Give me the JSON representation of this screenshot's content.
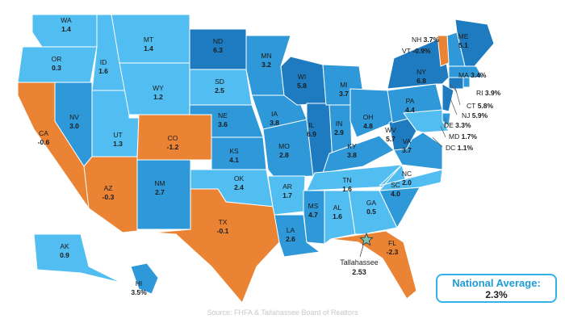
{
  "colors": {
    "dark": "#1e7bbf",
    "medium": "#2e98d8",
    "light": "#52bdf0",
    "negative": "#ea8434",
    "border": "#ffffff",
    "accent_text": "#1f9bd6"
  },
  "states": [
    {
      "abbr": "WA",
      "value": "1.4",
      "tone": "light"
    },
    {
      "abbr": "OR",
      "value": "0.3",
      "tone": "light"
    },
    {
      "abbr": "CA",
      "value": "-0.6",
      "tone": "negative"
    },
    {
      "abbr": "ID",
      "value": "1.6",
      "tone": "light"
    },
    {
      "abbr": "NV",
      "value": "3.0",
      "tone": "medium"
    },
    {
      "abbr": "AZ",
      "value": "-0.3",
      "tone": "negative"
    },
    {
      "abbr": "UT",
      "value": "1.3",
      "tone": "light"
    },
    {
      "abbr": "MT",
      "value": "1.4",
      "tone": "light"
    },
    {
      "abbr": "WY",
      "value": "1.2",
      "tone": "light"
    },
    {
      "abbr": "CO",
      "value": "-1.2",
      "tone": "negative"
    },
    {
      "abbr": "NM",
      "value": "2.7",
      "tone": "medium"
    },
    {
      "abbr": "ND",
      "value": "6.3",
      "tone": "dark"
    },
    {
      "abbr": "SD",
      "value": "2.5",
      "tone": "light"
    },
    {
      "abbr": "NE",
      "value": "3.6",
      "tone": "medium"
    },
    {
      "abbr": "KS",
      "value": "4.1",
      "tone": "medium"
    },
    {
      "abbr": "OK",
      "value": "2.4",
      "tone": "light"
    },
    {
      "abbr": "TX",
      "value": "-0.1",
      "tone": "negative"
    },
    {
      "abbr": "MN",
      "value": "3.2",
      "tone": "medium"
    },
    {
      "abbr": "IA",
      "value": "3.8",
      "tone": "medium"
    },
    {
      "abbr": "MO",
      "value": "2.8",
      "tone": "medium"
    },
    {
      "abbr": "AR",
      "value": "1.7",
      "tone": "light"
    },
    {
      "abbr": "LA",
      "value": "2.6",
      "tone": "medium"
    },
    {
      "abbr": "WI",
      "value": "5.8",
      "tone": "dark"
    },
    {
      "abbr": "IL",
      "value": "6.9",
      "tone": "dark"
    },
    {
      "abbr": "MI",
      "value": "3.7",
      "tone": "medium"
    },
    {
      "abbr": "IN",
      "value": "2.9",
      "tone": "medium"
    },
    {
      "abbr": "OH",
      "value": "4.8",
      "tone": "medium"
    },
    {
      "abbr": "KY",
      "value": "3.8",
      "tone": "medium"
    },
    {
      "abbr": "TN",
      "value": "1.6",
      "tone": "light"
    },
    {
      "abbr": "MS",
      "value": "4.7",
      "tone": "medium"
    },
    {
      "abbr": "AL",
      "value": "1.6",
      "tone": "light"
    },
    {
      "abbr": "GA",
      "value": "0.5",
      "tone": "light"
    },
    {
      "abbr": "FL",
      "value": "-2.3",
      "tone": "negative"
    },
    {
      "abbr": "SC",
      "value": "4.0",
      "tone": "medium"
    },
    {
      "abbr": "NC",
      "value": "2.0",
      "tone": "light"
    },
    {
      "abbr": "VA",
      "value": "3.7",
      "tone": "medium"
    },
    {
      "abbr": "WV",
      "value": "5.7",
      "tone": "dark"
    },
    {
      "abbr": "PA",
      "value": "4.4",
      "tone": "medium"
    },
    {
      "abbr": "NY",
      "value": "6.8",
      "tone": "dark"
    },
    {
      "abbr": "ME",
      "value": "5.1",
      "tone": "dark"
    },
    {
      "abbr": "NH",
      "value": "3.7%",
      "tone": "medium"
    },
    {
      "abbr": "VT",
      "value": "-0.9%",
      "tone": "negative"
    },
    {
      "abbr": "MA",
      "value": "3.4%",
      "tone": "medium"
    },
    {
      "abbr": "RI",
      "value": "3.9%",
      "tone": "medium"
    },
    {
      "abbr": "CT",
      "value": "5.8%",
      "tone": "dark"
    },
    {
      "abbr": "NJ",
      "value": "5.9%",
      "tone": "dark"
    },
    {
      "abbr": "DE",
      "value": "3.3%",
      "tone": "medium"
    },
    {
      "abbr": "MD",
      "value": "1.7%",
      "tone": "light"
    },
    {
      "abbr": "DC",
      "value": "1.1%",
      "tone": "light"
    },
    {
      "abbr": "AK",
      "value": "0.9",
      "tone": "light"
    },
    {
      "abbr": "HI",
      "value": "3.5%",
      "tone": "medium"
    }
  ],
  "city": {
    "name": "Tallahassee",
    "value": "2.53"
  },
  "national": {
    "title": "National Average:",
    "value": "2.3%"
  },
  "source": "Source: FHFA & Tallahassee Board of Realtors"
}
